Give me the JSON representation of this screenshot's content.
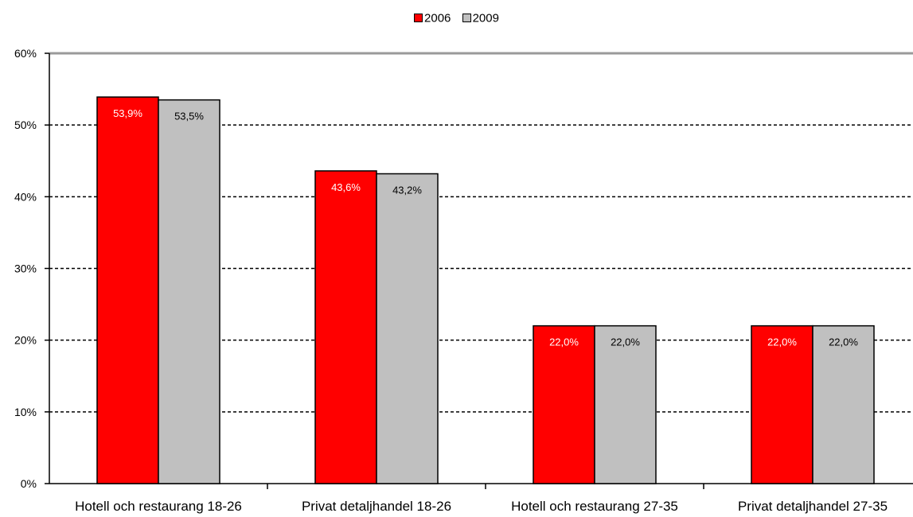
{
  "chart_data": {
    "type": "bar",
    "categories": [
      "Hotell och restaurang 18-26",
      "Privat detaljhandel 18-26",
      "Hotell och restaurang 27-35",
      "Privat detaljhandel 27-35"
    ],
    "series": [
      {
        "name": "2006",
        "color": "#ff0000",
        "values": [
          53.9,
          43.6,
          22.0,
          22.0
        ],
        "labels": [
          "53,9%",
          "43,6%",
          "22,0%",
          "22,0%"
        ],
        "label_color": "#ffffff"
      },
      {
        "name": "2009",
        "color": "#c0c0c0",
        "values": [
          53.5,
          43.2,
          22.0,
          22.0
        ],
        "labels": [
          "53,5%",
          "43,2%",
          "22,0%",
          "22,0%"
        ],
        "label_color": "#000000"
      }
    ],
    "yticks": [
      "0%",
      "10%",
      "20%",
      "30%",
      "40%",
      "50%",
      "60%"
    ],
    "ylim": [
      0,
      60
    ],
    "grid": true,
    "legend_position": "top-center"
  }
}
